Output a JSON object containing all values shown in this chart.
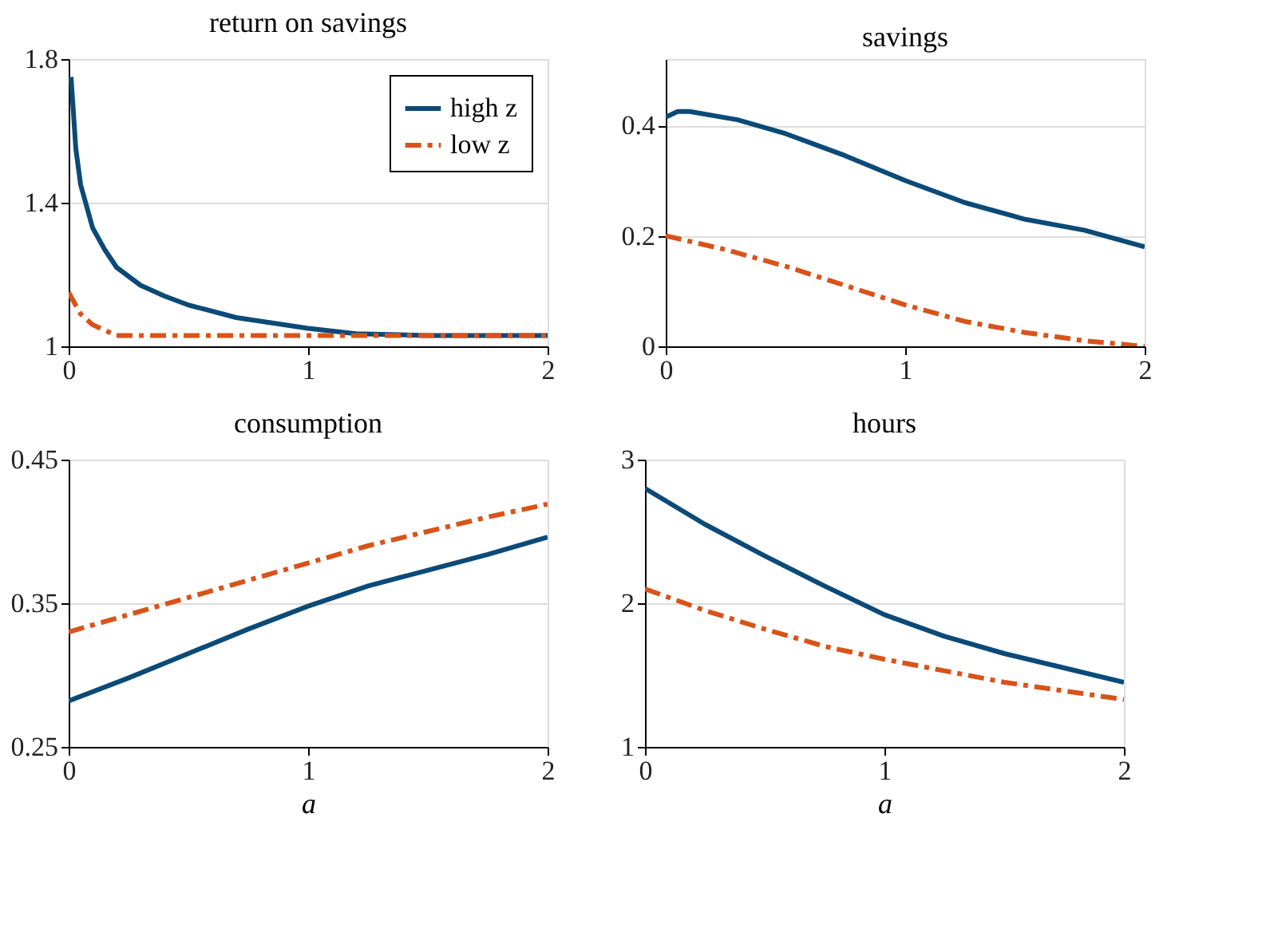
{
  "chart_data": [
    {
      "type": "line",
      "title": "return on savings",
      "xlim": [
        0,
        2
      ],
      "xticks": [
        0,
        1,
        2
      ],
      "ylim": [
        1,
        1.8
      ],
      "yticks": [
        1,
        1.4,
        1.8
      ],
      "grid": "y",
      "legend": "top right",
      "series": [
        {
          "name": "high z",
          "color": "#0b4a78",
          "line_style": "solid",
          "x": [
            0.01,
            0.03,
            0.05,
            0.1,
            0.15,
            0.2,
            0.3,
            0.4,
            0.5,
            0.7,
            1,
            1.2,
            1.5,
            2
          ],
          "values": [
            1.75,
            1.55,
            1.45,
            1.33,
            1.27,
            1.22,
            1.17,
            1.14,
            1.115,
            1.08,
            1.05,
            1.035,
            1.03,
            1.03
          ]
        },
        {
          "name": "low z",
          "color": "#d95319",
          "line_style": "dashed",
          "x": [
            0,
            0.05,
            0.1,
            0.2,
            2
          ],
          "values": [
            1.15,
            1.09,
            1.06,
            1.03,
            1.03
          ]
        }
      ]
    },
    {
      "type": "line",
      "title": "savings",
      "xlim": [
        0,
        2
      ],
      "xticks": [
        0,
        1,
        2
      ],
      "ylim": [
        0,
        0.52
      ],
      "yticks": [
        0,
        0.2,
        0.4
      ],
      "grid": "y",
      "series": [
        {
          "color": "#0b4a78",
          "line_style": "solid",
          "x": [
            0,
            0.05,
            0.1,
            0.3,
            0.5,
            0.75,
            1,
            1.25,
            1.5,
            1.75,
            2
          ],
          "values": [
            0.415,
            0.425,
            0.425,
            0.41,
            0.385,
            0.345,
            0.3,
            0.26,
            0.23,
            0.21,
            0.18
          ]
        },
        {
          "color": "#d95319",
          "line_style": "dashed",
          "x": [
            0,
            0.25,
            0.5,
            0.75,
            1,
            1.25,
            1.5,
            1.75,
            2
          ],
          "values": [
            0.2,
            0.175,
            0.145,
            0.11,
            0.075,
            0.045,
            0.025,
            0.01,
            0.0
          ]
        }
      ]
    },
    {
      "type": "line",
      "title": "consumption",
      "xlabel": "a",
      "xlim": [
        0,
        2
      ],
      "xticks": [
        0,
        1,
        2
      ],
      "ylim": [
        0.25,
        0.45
      ],
      "yticks": [
        0.25,
        0.35,
        0.45
      ],
      "grid": "y",
      "series": [
        {
          "color": "#0b4a78",
          "line_style": "solid",
          "x": [
            0,
            0.25,
            0.5,
            0.75,
            1,
            1.25,
            1.5,
            1.75,
            2
          ],
          "values": [
            0.282,
            0.298,
            0.315,
            0.332,
            0.348,
            0.362,
            0.373,
            0.384,
            0.396
          ]
        },
        {
          "color": "#d95319",
          "line_style": "dashed",
          "x": [
            0,
            0.25,
            0.5,
            0.75,
            1,
            1.25,
            1.5,
            1.75,
            2
          ],
          "values": [
            0.33,
            0.342,
            0.354,
            0.366,
            0.378,
            0.39,
            0.4,
            0.41,
            0.419
          ]
        }
      ]
    },
    {
      "type": "line",
      "title": "hours",
      "xlabel": "a",
      "xlim": [
        0,
        2
      ],
      "xticks": [
        0,
        1,
        2
      ],
      "ylim": [
        1,
        3
      ],
      "yticks": [
        1,
        2,
        3
      ],
      "grid": "y",
      "series": [
        {
          "color": "#0b4a78",
          "line_style": "solid",
          "x": [
            0,
            0.25,
            0.5,
            0.75,
            1,
            1.25,
            1.5,
            1.75,
            2
          ],
          "values": [
            2.8,
            2.55,
            2.33,
            2.12,
            1.92,
            1.77,
            1.65,
            1.55,
            1.45
          ]
        },
        {
          "color": "#d95319",
          "line_style": "dashed",
          "x": [
            0,
            0.25,
            0.5,
            0.75,
            1,
            1.25,
            1.5,
            1.75,
            2
          ],
          "values": [
            2.1,
            1.95,
            1.82,
            1.7,
            1.61,
            1.53,
            1.45,
            1.39,
            1.33
          ]
        }
      ]
    }
  ]
}
